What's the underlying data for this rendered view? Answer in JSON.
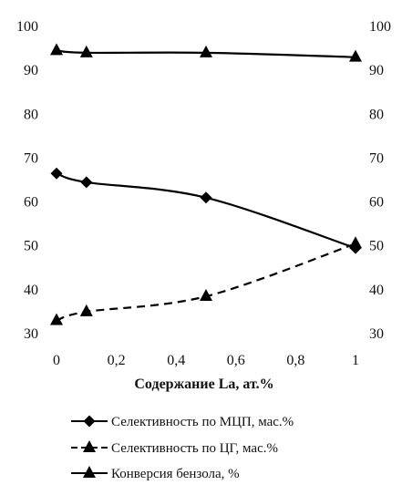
{
  "chart_data": {
    "type": "line",
    "title": "",
    "xlabel": "Содержание La, ат.%",
    "ylabel": "",
    "x": [
      0,
      0.1,
      0.5,
      1
    ],
    "xticks": [
      "0",
      "0,2",
      "0,4",
      "0,6",
      "0,8",
      "1"
    ],
    "xtick_values": [
      0,
      0.2,
      0.4,
      0.6,
      0.8,
      1
    ],
    "xlim": [
      0,
      1
    ],
    "ylim": [
      30,
      100
    ],
    "yticks": [
      30,
      40,
      50,
      60,
      70,
      80,
      90,
      100
    ],
    "right_axis_ticks": [
      30,
      40,
      50,
      60,
      70,
      80,
      90,
      100
    ],
    "grid": false,
    "legend_position": "bottom",
    "series": [
      {
        "name": "Селективность по МЦП, мас.%",
        "values": [
          66.5,
          64.5,
          61,
          49.5
        ],
        "marker": "diamond",
        "line": "solid",
        "color": "#000000"
      },
      {
        "name": "Селективность по ЦГ, мас.%",
        "values": [
          33,
          35,
          38.5,
          50.5
        ],
        "marker": "triangle",
        "line": "dashed",
        "color": "#000000"
      },
      {
        "name": "Конверсия бензола, %",
        "values": [
          94.5,
          94,
          94,
          93
        ],
        "marker": "triangle",
        "line": "solid",
        "color": "#000000"
      }
    ]
  }
}
